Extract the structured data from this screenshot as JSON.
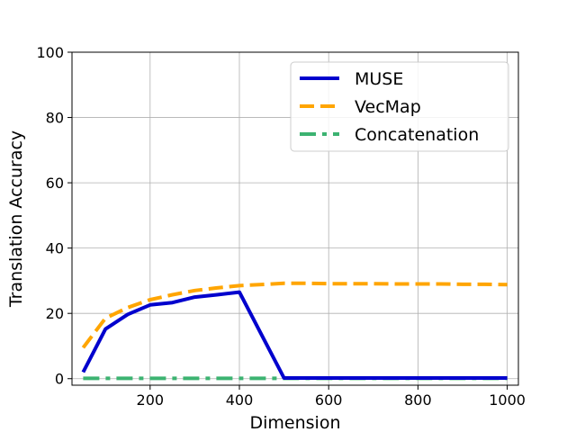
{
  "chart_data": {
    "type": "line",
    "xlabel": "Dimension",
    "ylabel": "Translation Accuracy",
    "xlim": [
      25,
      1025
    ],
    "ylim": [
      -2,
      100
    ],
    "x_ticks": [
      200,
      400,
      600,
      800,
      1000
    ],
    "y_ticks": [
      0,
      20,
      40,
      60,
      80,
      100
    ],
    "x_tick_labels": [
      "200",
      "400",
      "600",
      "800",
      "1000"
    ],
    "y_tick_labels": [
      "0",
      "20",
      "40",
      "60",
      "80",
      "100"
    ],
    "grid": true,
    "legend_position": "top-right",
    "series": [
      {
        "name": "MUSE",
        "color": "#0000cd",
        "style": "solid",
        "x": [
          50,
          100,
          150,
          200,
          250,
          300,
          350,
          400,
          500,
          550,
          600,
          650,
          700,
          750,
          800,
          850,
          900,
          950,
          1000
        ],
        "y": [
          2,
          15.2,
          19.7,
          22.6,
          23.3,
          25,
          25.7,
          26.5,
          0.2,
          0.2,
          0.2,
          0.2,
          0.2,
          0.2,
          0.2,
          0.2,
          0.2,
          0.2,
          0.2
        ]
      },
      {
        "name": "VecMap",
        "color": "#ffa500",
        "style": "dashed",
        "x": [
          50,
          100,
          150,
          200,
          250,
          300,
          350,
          400,
          500,
          550,
          600,
          650,
          700,
          750,
          800,
          850,
          900,
          950,
          1000
        ],
        "y": [
          9.5,
          18.5,
          21.8,
          24.2,
          25.7,
          27,
          27.8,
          28.5,
          29.2,
          29.2,
          29.1,
          29.1,
          29.1,
          29,
          29,
          29,
          28.9,
          28.9,
          28.8
        ]
      },
      {
        "name": "Concatenation",
        "color": "#3cb371",
        "style": "dashdot",
        "x": [
          50,
          100,
          150,
          200,
          250,
          300,
          350,
          400,
          500,
          550,
          600,
          650,
          700,
          750,
          800,
          850,
          900,
          950,
          1000
        ],
        "y": [
          0.1,
          0.1,
          0.1,
          0.1,
          0.1,
          0.1,
          0.1,
          0.1,
          0.1,
          0.1,
          0.1,
          0.1,
          0.1,
          0.1,
          0.1,
          0.1,
          0.1,
          0.1,
          0.1
        ]
      }
    ]
  }
}
